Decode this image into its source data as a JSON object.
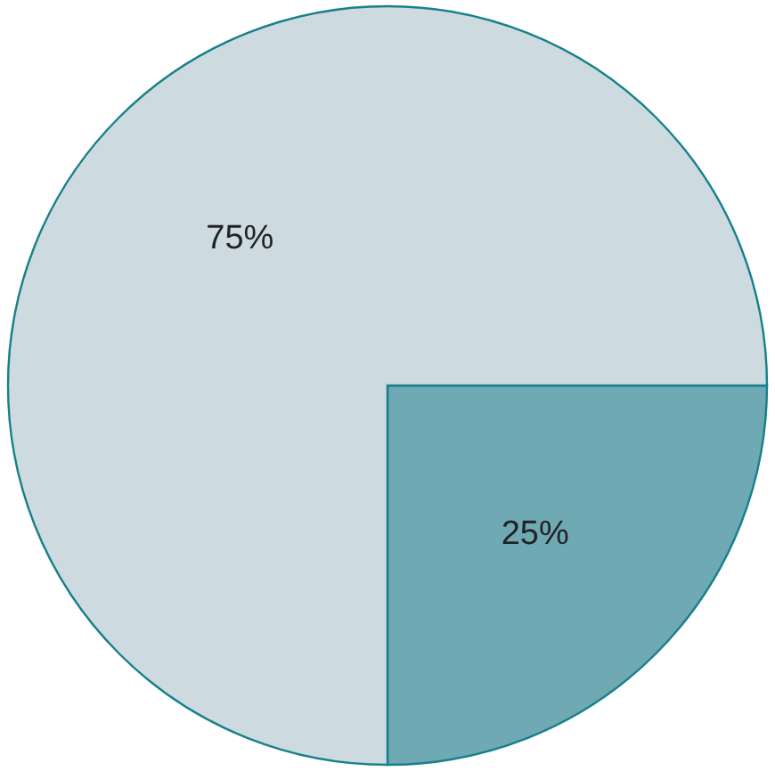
{
  "chart_data": {
    "type": "pie",
    "categories": [
      null,
      null
    ],
    "values": [
      25,
      75
    ],
    "colors": [
      "#6fa9b4",
      "#cddbe0"
    ],
    "value_labels": [
      "25%",
      "75%"
    ]
  }
}
